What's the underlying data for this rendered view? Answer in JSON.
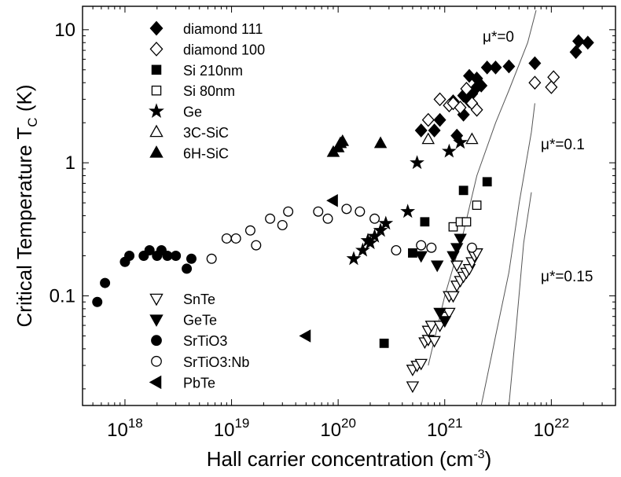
{
  "chart_data": {
    "type": "scatter",
    "title": "",
    "xlabel": "Hall carrier concentration  (cm",
    "xlabel_sup": "-3",
    "xlabel_end": ")",
    "ylabel": "Critical Temperature T",
    "ylabel_sub": "C",
    "ylabel_end": "  (K)",
    "x_scale": "log",
    "y_scale": "log",
    "xlim": [
      4e+17,
      4e+22
    ],
    "ylim": [
      0.015,
      15
    ],
    "x_ticks": [
      {
        "value": 1e+18,
        "base": "10",
        "exp": "18"
      },
      {
        "value": 1e+19,
        "base": "10",
        "exp": "19"
      },
      {
        "value": 1e+20,
        "base": "10",
        "exp": "20"
      },
      {
        "value": 1e+21,
        "base": "10",
        "exp": "21"
      },
      {
        "value": 1e+22,
        "base": "10",
        "exp": "22"
      }
    ],
    "y_ticks": [
      {
        "value": 0.1,
        "label": "0.1"
      },
      {
        "value": 1,
        "label": "1"
      },
      {
        "value": 10,
        "label": "10"
      }
    ],
    "grid": false,
    "series": [
      {
        "name": "diamond 111",
        "marker": "diamond",
        "filled": true,
        "legend_group": "top",
        "points": [
          [
            6e+20,
            1.75
          ],
          [
            8e+20,
            1.75
          ],
          [
            9e+20,
            2.1
          ],
          [
            1.2e+21,
            2.9
          ],
          [
            1.3e+21,
            1.6
          ],
          [
            1.5e+21,
            2.3
          ],
          [
            1.5e+21,
            3.2
          ],
          [
            1.7e+21,
            4.5
          ],
          [
            1.7e+21,
            2.9
          ],
          [
            1.8e+21,
            3.3
          ],
          [
            2e+21,
            4.3
          ],
          [
            2e+21,
            3.7
          ],
          [
            2.2e+21,
            3.8
          ],
          [
            2.5e+21,
            5.2
          ],
          [
            3e+21,
            5.2
          ],
          [
            4e+21,
            5.3
          ],
          [
            7e+21,
            5.6
          ],
          [
            1.7e+22,
            6.8
          ],
          [
            1.8e+22,
            8.2
          ],
          [
            2.2e+22,
            8
          ]
        ]
      },
      {
        "name": "diamond 100",
        "marker": "diamond",
        "filled": false,
        "legend_group": "top",
        "points": [
          [
            7e+20,
            2.1
          ],
          [
            9e+20,
            3.0
          ],
          [
            1.1e+21,
            2.7
          ],
          [
            1.2e+21,
            2.8
          ],
          [
            1.4e+21,
            2.6
          ],
          [
            1.6e+21,
            3.6
          ],
          [
            1.8e+21,
            2.8
          ],
          [
            2e+21,
            2.5
          ],
          [
            7e+21,
            4.0
          ],
          [
            1e+22,
            3.7
          ],
          [
            1.05e+22,
            4.4
          ]
        ]
      },
      {
        "name": "Si 210nm",
        "marker": "square",
        "filled": true,
        "legend_group": "top",
        "points": [
          [
            2.7e+20,
            0.044
          ],
          [
            5e+20,
            0.21
          ],
          [
            6.5e+20,
            0.36
          ],
          [
            1.5e+21,
            0.62
          ],
          [
            2.5e+21,
            0.72
          ]
        ]
      },
      {
        "name": "Si 80nm",
        "marker": "square",
        "filled": false,
        "legend_group": "top",
        "points": [
          [
            1.2e+21,
            0.33
          ],
          [
            1.4e+21,
            0.36
          ],
          [
            1.6e+21,
            0.36
          ],
          [
            2e+21,
            0.48
          ]
        ]
      },
      {
        "name": "Ge",
        "marker": "star",
        "filled": true,
        "legend_group": "top",
        "points": [
          [
            1.4e+20,
            0.19
          ],
          [
            1.7e+20,
            0.22
          ],
          [
            1.9e+20,
            0.26
          ],
          [
            2e+20,
            0.25
          ],
          [
            2.2e+20,
            0.28
          ],
          [
            2.5e+20,
            0.31
          ],
          [
            2.8e+20,
            0.35
          ],
          [
            4.5e+20,
            0.43
          ],
          [
            5.5e+20,
            1.0
          ],
          [
            1.1e+21,
            1.22
          ],
          [
            1.4e+21,
            1.42
          ]
        ]
      },
      {
        "name": "3C-SiC",
        "marker": "triangle-up",
        "filled": false,
        "legend_group": "top",
        "points": [
          [
            7e+20,
            1.5
          ],
          [
            1.8e+21,
            1.5
          ]
        ]
      },
      {
        "name": "6H-SiC",
        "marker": "triangle-up",
        "filled": true,
        "legend_group": "top",
        "points": [
          [
            9e+19,
            1.2
          ],
          [
            1e+20,
            1.3
          ],
          [
            1.05e+20,
            1.4
          ],
          [
            1.1e+20,
            1.45
          ],
          [
            2.5e+20,
            1.4
          ]
        ]
      },
      {
        "name": "SnTe",
        "marker": "triangle-down",
        "filled": false,
        "legend_group": "bottom",
        "points": [
          [
            5e+20,
            0.021
          ],
          [
            5e+20,
            0.028
          ],
          [
            5.5e+20,
            0.03
          ],
          [
            6e+20,
            0.031
          ],
          [
            6.5e+20,
            0.045
          ],
          [
            7e+20,
            0.047
          ],
          [
            7e+20,
            0.055
          ],
          [
            7.5e+20,
            0.06
          ],
          [
            8e+20,
            0.046
          ],
          [
            9e+20,
            0.06
          ],
          [
            1e+21,
            0.065
          ],
          [
            1e+21,
            0.07
          ],
          [
            1.1e+21,
            0.075
          ],
          [
            1.1e+21,
            0.1
          ],
          [
            1.2e+21,
            0.1
          ],
          [
            1.3e+21,
            0.12
          ],
          [
            1.4e+21,
            0.13
          ],
          [
            1.5e+21,
            0.14
          ],
          [
            1.6e+21,
            0.15
          ],
          [
            1.7e+21,
            0.16
          ],
          [
            1.8e+21,
            0.18
          ],
          [
            1.9e+21,
            0.2
          ],
          [
            2e+21,
            0.21
          ],
          [
            1.3e+21,
            0.17
          ]
        ]
      },
      {
        "name": "GeTe",
        "marker": "triangle-down",
        "filled": true,
        "legend_group": "bottom",
        "points": [
          [
            6e+20,
            0.2
          ],
          [
            8.5e+20,
            0.17
          ],
          [
            9e+20,
            0.075
          ],
          [
            1e+21,
            0.065
          ],
          [
            1.2e+21,
            0.2
          ],
          [
            1.3e+21,
            0.23
          ],
          [
            1.4e+21,
            0.27
          ]
        ]
      },
      {
        "name": "SrTiO3",
        "marker": "circle",
        "filled": true,
        "legend_group": "bottom",
        "points": [
          [
            5.5e+17,
            0.09
          ],
          [
            6.5e+17,
            0.125
          ],
          [
            1e+18,
            0.18
          ],
          [
            1.1e+18,
            0.2
          ],
          [
            1.5e+18,
            0.2
          ],
          [
            1.7e+18,
            0.22
          ],
          [
            2e+18,
            0.2
          ],
          [
            2.2e+18,
            0.22
          ],
          [
            2.5e+18,
            0.2
          ],
          [
            3e+18,
            0.2
          ],
          [
            3.8e+18,
            0.16
          ],
          [
            4.2e+18,
            0.19
          ]
        ]
      },
      {
        "name": "SrTiO3:Nb",
        "marker": "circle",
        "filled": false,
        "legend_group": "bottom",
        "points": [
          [
            6.5e+18,
            0.19
          ],
          [
            9e+18,
            0.27
          ],
          [
            1.1e+19,
            0.27
          ],
          [
            1.5e+19,
            0.31
          ],
          [
            1.7e+19,
            0.24
          ],
          [
            2.3e+19,
            0.38
          ],
          [
            3e+19,
            0.34
          ],
          [
            3.4e+19,
            0.43
          ],
          [
            6.5e+19,
            0.43
          ],
          [
            8e+19,
            0.38
          ],
          [
            1.2e+20,
            0.45
          ],
          [
            1.6e+20,
            0.43
          ],
          [
            2.2e+20,
            0.38
          ],
          [
            3.5e+20,
            0.22
          ],
          [
            6e+20,
            0.24
          ],
          [
            7.5e+20,
            0.23
          ],
          [
            1.8e+21,
            0.23
          ]
        ]
      },
      {
        "name": "PbTe",
        "marker": "triangle-left",
        "filled": true,
        "legend_group": "bottom",
        "points": [
          [
            5e+19,
            0.05
          ],
          [
            9e+19,
            0.52
          ]
        ]
      }
    ],
    "curves": [
      {
        "label": "μ*=0",
        "points": [
          [
            7e+20,
            0.03
          ],
          [
            1e+21,
            0.1
          ],
          [
            1.5e+21,
            0.3
          ],
          [
            2e+21,
            0.8
          ],
          [
            3e+21,
            2
          ],
          [
            4e+21,
            3.5
          ],
          [
            6e+21,
            8
          ],
          [
            7.2e+21,
            14
          ]
        ]
      },
      {
        "label": "μ*=0.1",
        "points": [
          [
            2.2e+21,
            0.015
          ],
          [
            3e+21,
            0.05
          ],
          [
            4e+21,
            0.15
          ],
          [
            5e+21,
            0.5
          ],
          [
            6.5e+21,
            1.7
          ],
          [
            7e+21,
            2.8
          ]
        ]
      },
      {
        "label": "μ*=0.15",
        "points": [
          [
            4e+21,
            0.015
          ],
          [
            4.7e+21,
            0.06
          ],
          [
            5.5e+21,
            0.25
          ],
          [
            6.5e+21,
            0.6
          ]
        ]
      }
    ]
  }
}
